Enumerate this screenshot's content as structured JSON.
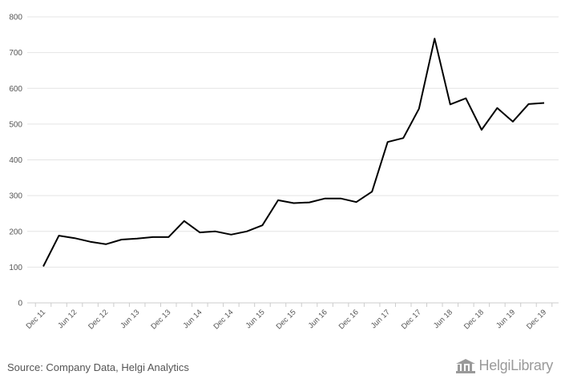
{
  "chart_data": {
    "type": "line",
    "title": "",
    "xlabel": "",
    "ylabel": "",
    "ylim": [
      0,
      800
    ],
    "yticks": [
      "0",
      "100",
      "200",
      "300",
      "400",
      "500",
      "600",
      "700",
      "800"
    ],
    "grid": true,
    "line_color": "#000000",
    "x": [
      "Dec 11",
      "Mar 12",
      "Jun 12",
      "Sep 12",
      "Dec 12",
      "Mar 13",
      "Jun 13",
      "Sep 13",
      "Dec 13",
      "Mar 14",
      "Jun 14",
      "Sep 14",
      "Dec 14",
      "Mar 15",
      "Jun 15",
      "Sep 15",
      "Dec 15",
      "Mar 16",
      "Jun 16",
      "Sep 16",
      "Dec 16",
      "Mar 17",
      "Jun 17",
      "Sep 17",
      "Dec 17",
      "Mar 18",
      "Jun 18",
      "Sep 18",
      "Dec 18",
      "Mar 19",
      "Jun 19",
      "Sep 19",
      "Dec 19"
    ],
    "xtick_labels": [
      "Dec 11",
      "",
      "Jun 12",
      "",
      "Dec 12",
      "",
      "Jun 13",
      "",
      "Dec 13",
      "",
      "Jun 14",
      "",
      "Dec 14",
      "",
      "Jun 15",
      "",
      "Dec 15",
      "",
      "Jun 16",
      "",
      "Dec 16",
      "",
      "Jun 17",
      "",
      "Dec 17",
      "",
      "Jun 18",
      "",
      "Dec 18",
      "",
      "Jun 19",
      "",
      "Dec 19"
    ],
    "series": [
      {
        "values": [
          102,
          188,
          181,
          171,
          164,
          177,
          180,
          184,
          184,
          229,
          197,
          200,
          191,
          200,
          217,
          287,
          279,
          281,
          292,
          292,
          282,
          311,
          450,
          461,
          543,
          739,
          555,
          572,
          484,
          545,
          507,
          556,
          559
        ]
      }
    ]
  },
  "footer": {
    "source": "Source: Company Data, Helgi Analytics",
    "brand": "HelgiLibrary"
  }
}
